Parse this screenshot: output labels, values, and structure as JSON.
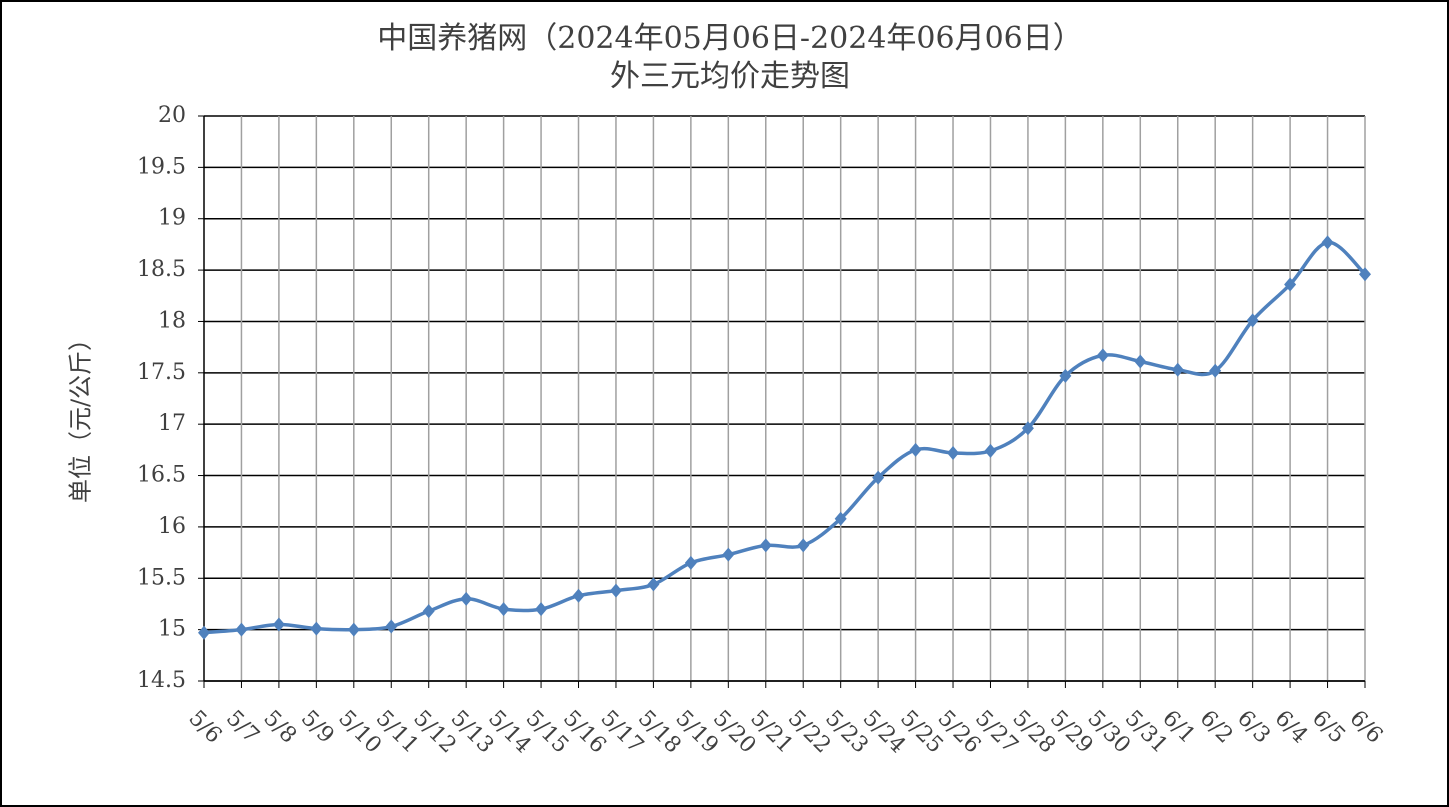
{
  "chart_data": {
    "type": "line",
    "title": "中国养猪网（2024年05月06日-2024年06月06日）",
    "subtitle": "外三元均价走势图",
    "y_label": "单位（元/公斤）",
    "categories": [
      "5/6",
      "5/7",
      "5/8",
      "5/9",
      "5/10",
      "5/11",
      "5/12",
      "5/13",
      "5/14",
      "5/15",
      "5/16",
      "5/17",
      "5/18",
      "5/19",
      "5/20",
      "5/21",
      "5/22",
      "5/23",
      "5/24",
      "5/25",
      "5/26",
      "5/27",
      "5/28",
      "5/29",
      "5/30",
      "5/31",
      "6/1",
      "6/2",
      "6/3",
      "6/4",
      "6/5",
      "6/6"
    ],
    "series": [
      {
        "name": "外三元均价",
        "color": "#4f81bd",
        "values": [
          14.97,
          15.0,
          15.05,
          15.01,
          15.0,
          15.03,
          15.18,
          15.3,
          15.2,
          15.2,
          15.33,
          15.38,
          15.44,
          15.65,
          15.73,
          15.82,
          15.82,
          16.08,
          16.48,
          16.75,
          16.72,
          16.74,
          16.96,
          17.47,
          17.67,
          17.61,
          17.53,
          17.52,
          18.01,
          18.36,
          18.77,
          18.46
        ]
      }
    ],
    "ylim": [
      14.5,
      20
    ],
    "yticks": [
      14.5,
      15,
      15.5,
      16,
      16.5,
      17,
      17.5,
      18,
      18.5,
      19,
      19.5,
      20
    ],
    "grid": true
  }
}
